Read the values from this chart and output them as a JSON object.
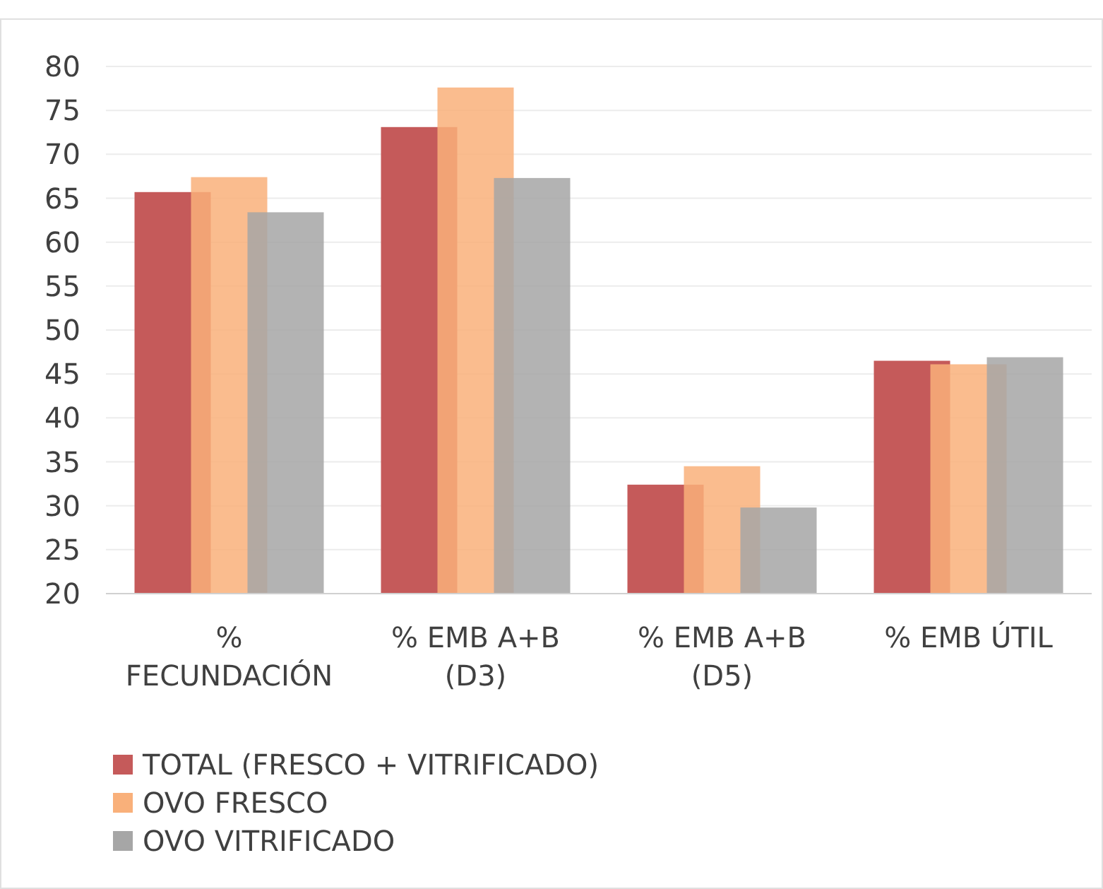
{
  "chart_data": {
    "type": "bar",
    "categories": [
      "% FECUNDACIÓN",
      "% EMB A+B (D3)",
      "% EMB A+B (D5)",
      "% EMB ÚTIL"
    ],
    "series": [
      {
        "name": "TOTAL (FRESCO + VITRIFICADO)",
        "color": "#c55a5a",
        "values": [
          65.7,
          73.1,
          32.4,
          46.5
        ]
      },
      {
        "name": "OVO FRESCO",
        "color": "#f9b07a",
        "values": [
          67.4,
          77.6,
          34.5,
          46.1
        ]
      },
      {
        "name": "OVO VITRIFICADO",
        "color": "#a6a6a6",
        "values": [
          63.4,
          67.3,
          29.8,
          46.9
        ]
      }
    ],
    "ylim": [
      20,
      80
    ],
    "yticks": [
      20,
      25,
      30,
      35,
      40,
      45,
      50,
      55,
      60,
      65,
      70,
      75,
      80
    ],
    "grid": "y",
    "legend": "bottom"
  }
}
